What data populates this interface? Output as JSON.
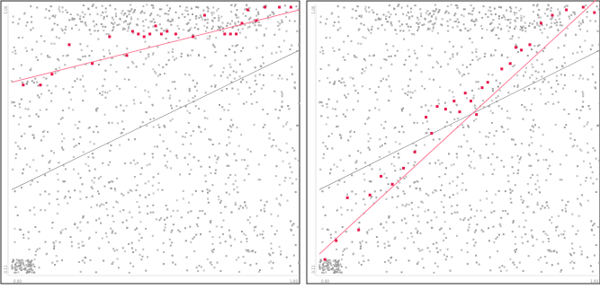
{
  "chart_data": [
    {
      "type": "scatter",
      "title": "",
      "xlabel": "",
      "ylabel": "",
      "xlim": [
        0,
        1
      ],
      "ylim": [
        0,
        1
      ],
      "x_ticks": [
        "0.00",
        "1.00"
      ],
      "y_ticks": [
        "0.11",
        "1.00"
      ],
      "grid": false,
      "background_points": {
        "color": "#9a9a9a",
        "count": 1400,
        "distribution": "uniform, denser toward top rows and bottom-left corner"
      },
      "trend_lines": [
        {
          "color": "#7f7f7f",
          "from": [
            0.0,
            0.31
          ],
          "to": [
            1.0,
            0.83
          ]
        },
        {
          "color": "#ff6b8a",
          "from": [
            0.0,
            0.71
          ],
          "to": [
            1.0,
            0.98
          ]
        }
      ],
      "highlighted_points": {
        "color": "#e8174a",
        "points": [
          [
            0.04,
            0.7
          ],
          [
            0.1,
            0.7
          ],
          [
            0.14,
            0.74
          ],
          [
            0.2,
            0.85
          ],
          [
            0.28,
            0.78
          ],
          [
            0.34,
            0.88
          ],
          [
            0.4,
            0.81
          ],
          [
            0.42,
            0.9
          ],
          [
            0.44,
            0.89
          ],
          [
            0.46,
            0.88
          ],
          [
            0.48,
            0.89
          ],
          [
            0.5,
            0.92
          ],
          [
            0.52,
            0.89
          ],
          [
            0.54,
            0.9
          ],
          [
            0.57,
            0.89
          ],
          [
            0.63,
            0.88
          ],
          [
            0.67,
            0.96
          ],
          [
            0.74,
            0.89
          ],
          [
            0.76,
            0.89
          ],
          [
            0.78,
            0.89
          ],
          [
            0.8,
            0.93
          ],
          [
            0.82,
            0.98
          ],
          [
            0.85,
            0.94
          ],
          [
            0.88,
            0.99
          ],
          [
            0.93,
            0.99
          ],
          [
            0.97,
            0.99
          ]
        ]
      }
    },
    {
      "type": "scatter",
      "title": "",
      "xlabel": "",
      "ylabel": "",
      "xlim": [
        0,
        1
      ],
      "ylim": [
        0,
        1
      ],
      "x_ticks": [
        "0.00",
        "1.00"
      ],
      "y_ticks": [
        "0.11",
        "1.00"
      ],
      "grid": false,
      "background_points": {
        "color": "#9a9a9a",
        "count": 1400,
        "distribution": "uniform, denser toward top rows and bottom-left corner"
      },
      "trend_lines": [
        {
          "color": "#7f7f7f",
          "from": [
            0.0,
            0.31
          ],
          "to": [
            1.0,
            0.83
          ]
        },
        {
          "color": "#ff6b8a",
          "from": [
            0.0,
            0.07
          ],
          "to": [
            1.0,
            1.03
          ]
        }
      ],
      "highlighted_points": {
        "color": "#e8174a",
        "points": [
          [
            0.02,
            0.05
          ],
          [
            0.06,
            0.12
          ],
          [
            0.1,
            0.28
          ],
          [
            0.14,
            0.16
          ],
          [
            0.18,
            0.29
          ],
          [
            0.22,
            0.36
          ],
          [
            0.26,
            0.33
          ],
          [
            0.3,
            0.39
          ],
          [
            0.34,
            0.45
          ],
          [
            0.38,
            0.58
          ],
          [
            0.4,
            0.52
          ],
          [
            0.42,
            0.62
          ],
          [
            0.45,
            0.61
          ],
          [
            0.48,
            0.64
          ],
          [
            0.5,
            0.6
          ],
          [
            0.52,
            0.67
          ],
          [
            0.54,
            0.64
          ],
          [
            0.56,
            0.59
          ],
          [
            0.58,
            0.69
          ],
          [
            0.6,
            0.71
          ],
          [
            0.65,
            0.76
          ],
          [
            0.68,
            0.78
          ],
          [
            0.7,
            0.84
          ],
          [
            0.72,
            0.83
          ],
          [
            0.75,
            0.85
          ],
          [
            0.79,
            0.93
          ],
          [
            0.83,
            0.96
          ],
          [
            0.88,
            0.98
          ],
          [
            0.94,
            0.99
          ],
          [
            0.98,
            0.97
          ]
        ]
      }
    }
  ]
}
